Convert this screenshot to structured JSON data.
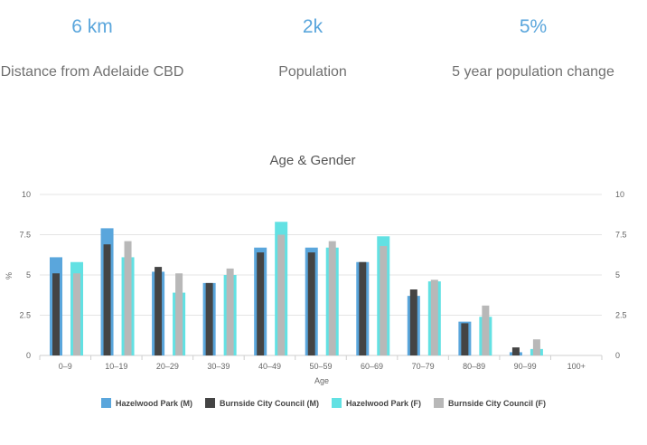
{
  "stats": [
    {
      "value": "6 km",
      "label": "Distance from Adelaide CBD"
    },
    {
      "value": "2k",
      "label": "Population"
    },
    {
      "value": "5%",
      "label": "5 year population change"
    }
  ],
  "colors": {
    "hp_m": "#5aa6dc",
    "bcc_m": "#444444",
    "hp_f": "#62e1e3",
    "bcc_f": "#b8b8b8",
    "grid": "#e4e4e4"
  },
  "chart_data": {
    "type": "bar",
    "title": "Age & Gender",
    "xlabel": "Age",
    "ylabel": "%",
    "ylim": [
      0,
      10
    ],
    "yticks": [
      "0",
      "2.5",
      "5",
      "7.5",
      "10"
    ],
    "categories": [
      "0–9",
      "10–19",
      "20–29",
      "30–39",
      "40–49",
      "50–59",
      "60–69",
      "70–79",
      "80–89",
      "90–99",
      "100+"
    ],
    "series": [
      {
        "name": "Hazelwood Park (M)",
        "values": [
          6.1,
          7.9,
          5.2,
          4.5,
          6.7,
          6.7,
          5.8,
          3.7,
          2.1,
          0.2,
          0
        ]
      },
      {
        "name": "Burnside City Council (M)",
        "values": [
          5.1,
          6.9,
          5.5,
          4.5,
          6.4,
          6.4,
          5.8,
          4.1,
          2.0,
          0.5,
          0
        ]
      },
      {
        "name": "Hazelwood Park (F)",
        "values": [
          5.8,
          6.1,
          3.9,
          5.0,
          8.3,
          6.7,
          7.4,
          4.6,
          2.4,
          0.4,
          0
        ]
      },
      {
        "name": "Burnside City Council (F)",
        "values": [
          5.1,
          7.1,
          5.1,
          5.4,
          7.5,
          7.1,
          6.8,
          4.7,
          3.1,
          1.0,
          0
        ]
      }
    ],
    "legend": "bottom"
  }
}
